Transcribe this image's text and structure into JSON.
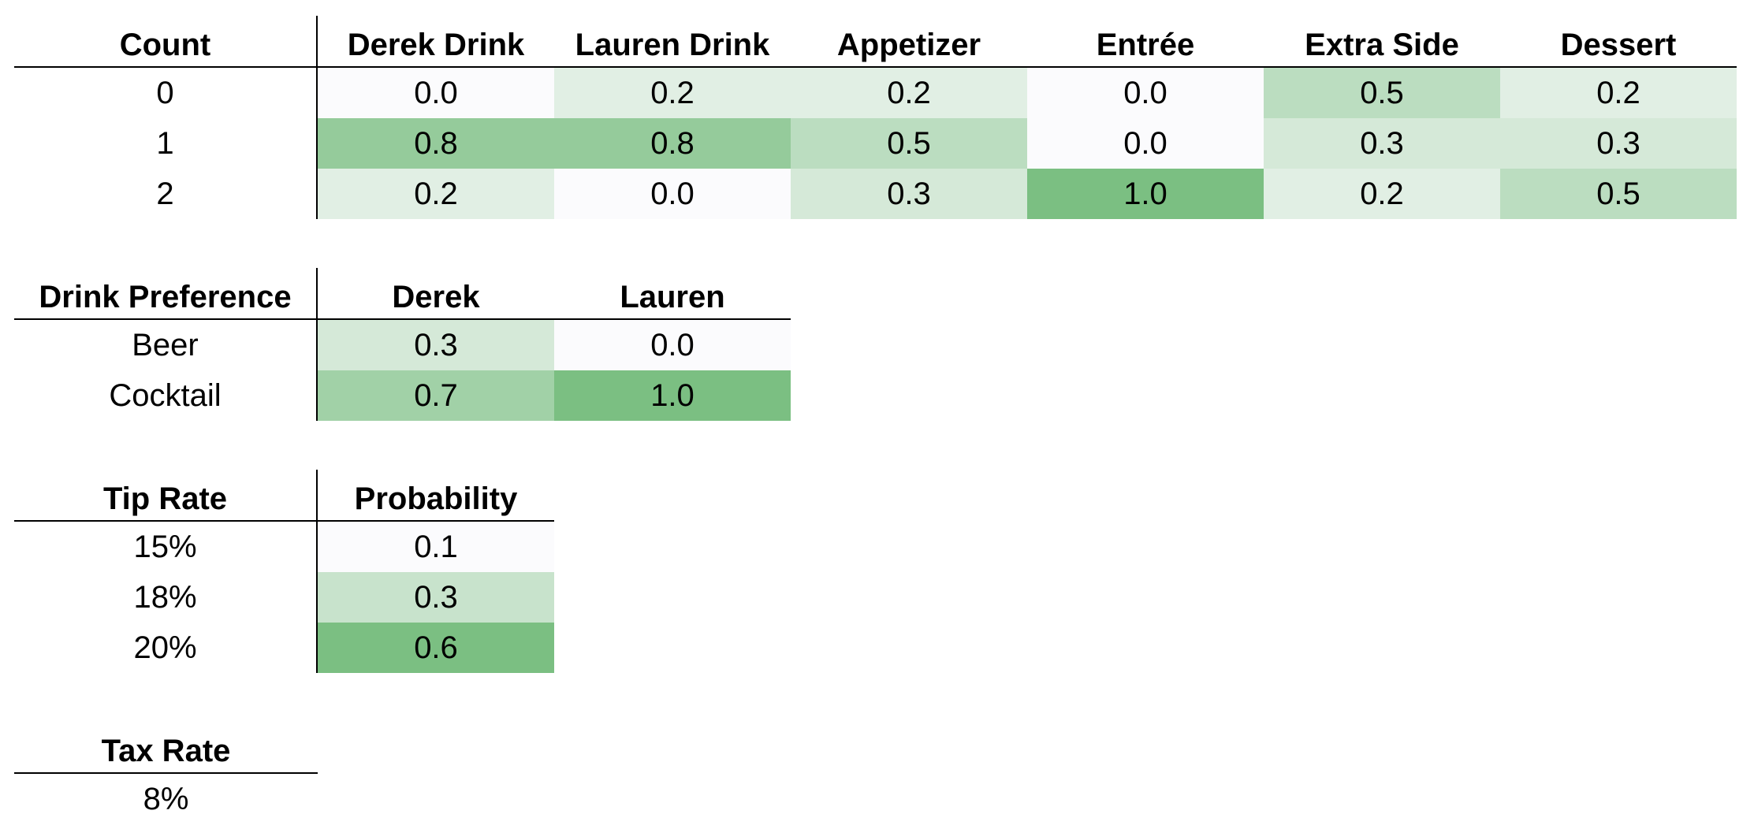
{
  "tables": [
    {
      "row_header": "Count",
      "columns": [
        "Derek Drink",
        "Lauren Drink",
        "Appetizer",
        "Entrée",
        "Extra Side",
        "Dessert"
      ],
      "rows": [
        {
          "label": "0",
          "values": [
            "0.0",
            "0.2",
            "0.2",
            "0.0",
            "0.5",
            "0.2"
          ]
        },
        {
          "label": "1",
          "values": [
            "0.8",
            "0.8",
            "0.5",
            "0.0",
            "0.3",
            "0.3"
          ]
        },
        {
          "label": "2",
          "values": [
            "0.2",
            "0.0",
            "0.3",
            "1.0",
            "0.2",
            "0.5"
          ]
        }
      ]
    },
    {
      "row_header": "Drink Preference",
      "columns": [
        "Derek",
        "Lauren"
      ],
      "rows": [
        {
          "label": "Beer",
          "values": [
            "0.3",
            "0.0"
          ]
        },
        {
          "label": "Cocktail",
          "values": [
            "0.7",
            "1.0"
          ]
        }
      ]
    },
    {
      "row_header": "Tip Rate",
      "columns": [
        "Probability"
      ],
      "rows": [
        {
          "label": "15%",
          "values": [
            "0.1"
          ]
        },
        {
          "label": "18%",
          "values": [
            "0.3"
          ]
        },
        {
          "label": "20%",
          "values": [
            "0.6"
          ]
        }
      ]
    },
    {
      "row_header": "Tax Rate",
      "columns": [],
      "rows": [
        {
          "label": "8%",
          "values": []
        }
      ]
    }
  ],
  "heatmap_colors": {
    "low": "#fbfbfd",
    "high": "#7bbf82"
  }
}
